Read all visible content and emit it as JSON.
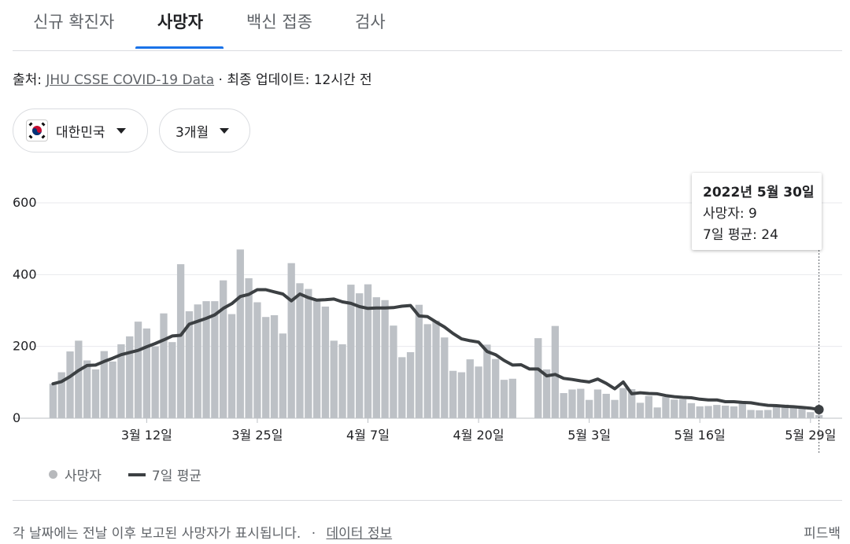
{
  "tabs": [
    {
      "label": "신규 확진자",
      "active": false
    },
    {
      "label": "사망자",
      "active": true
    },
    {
      "label": "백신 접종",
      "active": false
    },
    {
      "label": "검사",
      "active": false
    }
  ],
  "source": {
    "prefix": "출처:",
    "link": "JHU CSSE COVID-19 Data",
    "suffix": "· 최종 업데이트: 12시간 전"
  },
  "filters": {
    "country": "대한민국",
    "country_flag_icon": "south-korea-flag",
    "period": "3개월"
  },
  "tooltip": {
    "date": "2022년 5월 30일",
    "deaths": "사망자: 9",
    "avg": "7일 평균: 24"
  },
  "legend": {
    "bars": "사망자",
    "line": "7일 평균"
  },
  "footer": {
    "note": "각 날짜에는 전날 이후 보고된 사망자가 표시됩니다.",
    "separator": "·",
    "link": "데이터 정보",
    "feedback": "피드백"
  },
  "colors": {
    "bar": "#bdc1c6",
    "line": "#3c4043",
    "accent": "#1a73e8"
  },
  "chart_data": {
    "type": "bar",
    "x_start": "2022-03-01",
    "x_end": "2022-05-30",
    "ylim": [
      0,
      600
    ],
    "yticks": [
      0,
      200,
      400,
      600
    ],
    "xticks": [
      {
        "date": "2022-03-12",
        "label": "3월 12일"
      },
      {
        "date": "2022-03-25",
        "label": "3월 25일"
      },
      {
        "date": "2022-04-07",
        "label": "4월 7일"
      },
      {
        "date": "2022-04-20",
        "label": "4월 20일"
      },
      {
        "date": "2022-05-03",
        "label": "5월 3일"
      },
      {
        "date": "2022-05-16",
        "label": "5월 16일"
      },
      {
        "date": "2022-05-29",
        "label": "5월 29일"
      }
    ],
    "series": [
      {
        "name": "사망자",
        "type": "bar",
        "values": [
          96,
          128,
          186,
          216,
          161,
          136,
          187,
          158,
          206,
          228,
          269,
          250,
          200,
          292,
          212,
          429,
          298,
          317,
          326,
          326,
          384,
          290,
          470,
          390,
          323,
          282,
          287,
          236,
          432,
          376,
          360,
          333,
          311,
          216,
          206,
          372,
          348,
          373,
          337,
          329,
          258,
          170,
          184,
          316,
          262,
          272,
          225,
          132,
          128,
          164,
          144,
          205,
          165,
          107,
          110,
          null,
          null,
          223,
          136,
          257,
          70,
          80,
          82,
          51,
          80,
          68,
          51,
          84,
          81,
          43,
          62,
          30,
          59,
          52,
          53,
          42,
          33,
          34,
          37,
          35,
          33,
          45,
          23,
          22,
          23,
          31,
          38,
          31,
          30,
          17,
          9
        ]
      },
      {
        "name": "7일 평균",
        "type": "line",
        "values": [
          96,
          102,
          116,
          133,
          147,
          148,
          158,
          167,
          177,
          183,
          189,
          199,
          208,
          218,
          229,
          231,
          262,
          270,
          278,
          288,
          306,
          319,
          339,
          345,
          358,
          358,
          352,
          346,
          327,
          346,
          336,
          329,
          330,
          332,
          324,
          320,
          311,
          306,
          307,
          307,
          308,
          312,
          314,
          285,
          283,
          268,
          254,
          236,
          221,
          216,
          212,
          186,
          177,
          161,
          148,
          149,
          137,
          137,
          118,
          122,
          111,
          108,
          104,
          101,
          109,
          97,
          82,
          101,
          68,
          71,
          69,
          68,
          63,
          60,
          58,
          57,
          53,
          51,
          51,
          46,
          46,
          44,
          43,
          39,
          36,
          35,
          33,
          32,
          30,
          28,
          24
        ]
      }
    ]
  }
}
